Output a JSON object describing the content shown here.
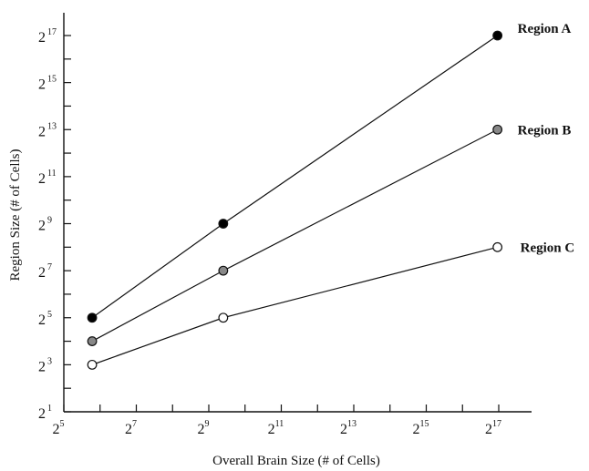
{
  "chart_data": {
    "type": "line",
    "title": "",
    "xlabel": "Overall Brain Size (# of Cells)",
    "ylabel": "Region Size (# of Cells)",
    "x_scale": "log2",
    "y_scale": "log2",
    "xlim": [
      32,
      131072
    ],
    "ylim": [
      2,
      131072
    ],
    "x_ticks": [
      {
        "value": 32,
        "base": "2",
        "exp": "5"
      },
      {
        "value": 128,
        "base": "2",
        "exp": "7"
      },
      {
        "value": 512,
        "base": "2",
        "exp": "9"
      },
      {
        "value": 2048,
        "base": "2",
        "exp": "11"
      },
      {
        "value": 8192,
        "base": "2",
        "exp": "13"
      },
      {
        "value": 32768,
        "base": "2",
        "exp": "15"
      },
      {
        "value": 131072,
        "base": "2",
        "exp": "17"
      }
    ],
    "y_ticks": [
      {
        "value": 2,
        "base": "2",
        "exp": "1"
      },
      {
        "value": 8,
        "base": "2",
        "exp": "3"
      },
      {
        "value": 32,
        "base": "2",
        "exp": "5"
      },
      {
        "value": 128,
        "base": "2",
        "exp": "7"
      },
      {
        "value": 512,
        "base": "2",
        "exp": "9"
      },
      {
        "value": 2048,
        "base": "2",
        "exp": "11"
      },
      {
        "value": 8192,
        "base": "2",
        "exp": "13"
      },
      {
        "value": 32768,
        "base": "2",
        "exp": "15"
      },
      {
        "value": 131072,
        "base": "2",
        "exp": "17"
      }
    ],
    "grid": false,
    "legend": "none",
    "series": [
      {
        "name": "Region A",
        "marker_fill": "#000000",
        "points": [
          {
            "x": 55,
            "y": 32
          },
          {
            "x": 675,
            "y": 512
          },
          {
            "x": 128000,
            "y": 131072
          }
        ]
      },
      {
        "name": "Region B",
        "marker_fill": "#888888",
        "points": [
          {
            "x": 55,
            "y": 16
          },
          {
            "x": 675,
            "y": 128
          },
          {
            "x": 128000,
            "y": 8192
          }
        ]
      },
      {
        "name": "Region C",
        "marker_fill": "#ffffff",
        "points": [
          {
            "x": 55,
            "y": 8
          },
          {
            "x": 675,
            "y": 32
          },
          {
            "x": 128000,
            "y": 256
          }
        ]
      }
    ]
  }
}
